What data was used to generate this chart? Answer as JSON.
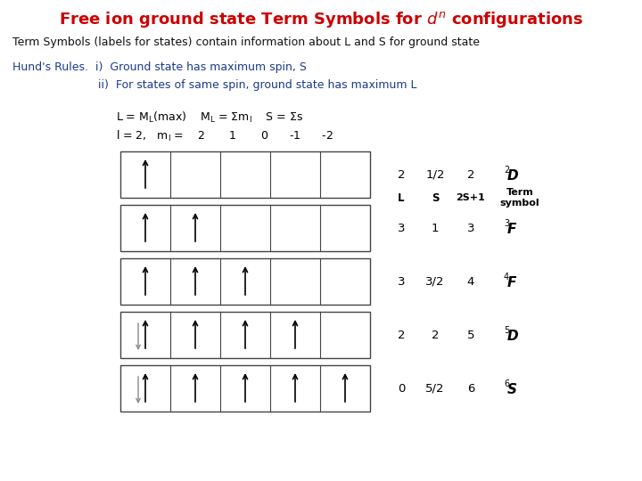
{
  "title_color": "#cc0000",
  "bg_color": "#ffffff",
  "subtitle1": "Term Symbols (labels for states) contain information about L and S for ground state",
  "hundsrule_color": "#1a3a8c",
  "text_color": "#111111",
  "table_rows": [
    [
      "2",
      "1/2",
      "2",
      "2",
      "D"
    ],
    [
      "3",
      "1",
      "3",
      "3",
      "F"
    ],
    [
      "3",
      "3/2",
      "4",
      "4",
      "F"
    ],
    [
      "2",
      "2",
      "5",
      "5",
      "D"
    ],
    [
      "0",
      "5/2",
      "6",
      "6",
      "S"
    ]
  ],
  "configs": [
    {
      "up": [
        0
      ],
      "down": []
    },
    {
      "up": [
        0,
        1
      ],
      "down": []
    },
    {
      "up": [
        0,
        1,
        2
      ],
      "down": []
    },
    {
      "up": [
        0,
        1,
        2,
        3
      ],
      "down": [
        0
      ]
    },
    {
      "up": [
        0,
        1,
        2,
        3,
        4
      ],
      "down": [
        0
      ]
    }
  ]
}
